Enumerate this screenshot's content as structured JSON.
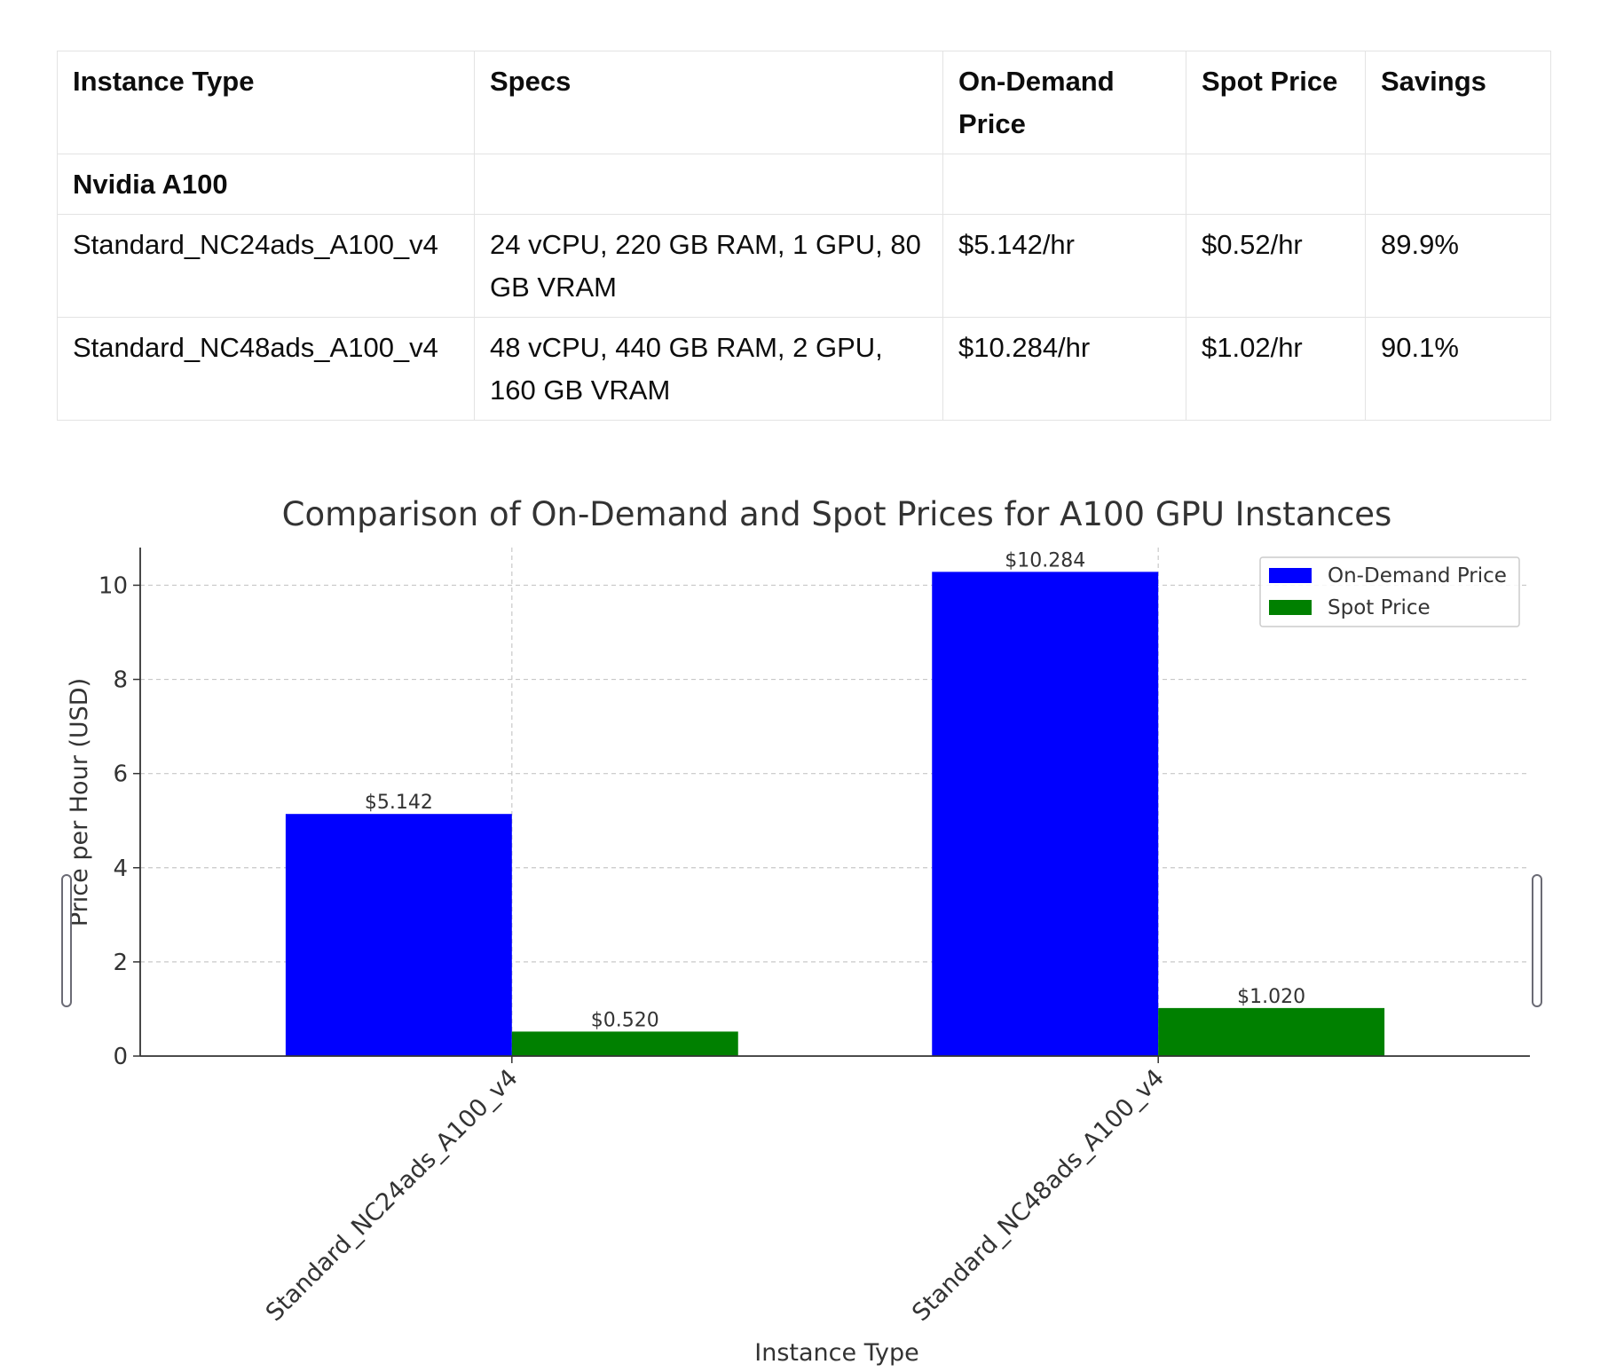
{
  "table": {
    "headers": [
      "Instance Type",
      "Specs",
      "On-Demand Price",
      "Spot Price",
      "Savings"
    ],
    "group_label": "Nvidia A100",
    "rows": [
      [
        "Standard_NC24ads_A100_v4",
        "24 vCPU, 220 GB RAM, 1 GPU, 80 GB VRAM",
        "$5.142/hr",
        "$0.52/hr",
        "89.9%"
      ],
      [
        "Standard_NC48ads_A100_v4",
        "48 vCPU, 440 GB RAM, 2 GPU, 160 GB VRAM",
        "$10.284/hr",
        "$1.02/hr",
        "90.1%"
      ]
    ]
  },
  "chart_data": {
    "type": "bar",
    "title": "Comparison of On-Demand and Spot Prices for A100 GPU Instances",
    "xlabel": "Instance Type",
    "ylabel": "Price per Hour (USD)",
    "categories": [
      "Standard_NC24ads_A100_v4",
      "Standard_NC48ads_A100_v4"
    ],
    "series": [
      {
        "name": "On-Demand Price",
        "values": [
          5.142,
          10.284
        ],
        "color": "#0000ff",
        "labels": [
          "$5.142",
          "$10.284"
        ]
      },
      {
        "name": "Spot Price",
        "values": [
          0.52,
          1.02
        ],
        "color": "#008000",
        "labels": [
          "$0.520",
          "$1.020"
        ]
      }
    ],
    "yticks": [
      0,
      2,
      4,
      6,
      8,
      10
    ],
    "ylim": [
      0,
      10.8
    ],
    "grid": true,
    "legend": "top-right"
  }
}
